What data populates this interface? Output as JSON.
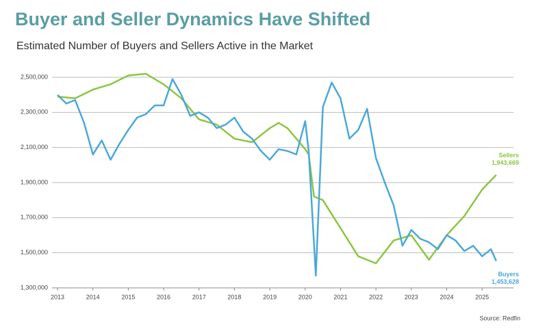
{
  "chart_data": {
    "type": "line",
    "title": "Buyer and Seller Dynamics Have Shifted",
    "subtitle": "Estimated Number of Buyers and Sellers Active in the Market",
    "source": "Source: Redfin",
    "xlim": [
      2013,
      2025.5
    ],
    "xticks": [
      2013,
      2014,
      2015,
      2016,
      2017,
      2018,
      2019,
      2020,
      2021,
      2022,
      2023,
      2024,
      2025
    ],
    "ylim": [
      1300000,
      2500000
    ],
    "yticks": [
      {
        "value": 1300000,
        "label": "1,300,000"
      },
      {
        "value": 1500000,
        "label": "1,500,000"
      },
      {
        "value": 1700000,
        "label": "1,700,000"
      },
      {
        "value": 1900000,
        "label": "1,900,000"
      },
      {
        "value": 2100000,
        "label": "2,100,000"
      },
      {
        "value": 2300000,
        "label": "2,300,000"
      },
      {
        "value": 2500000,
        "label": "2,500,000"
      }
    ],
    "grid": true,
    "series": [
      {
        "name": "Sellers",
        "color": "#8cc63f",
        "x": [
          2013,
          2013.5,
          2014,
          2014.5,
          2015,
          2015.5,
          2016,
          2016.5,
          2017,
          2017.5,
          2018,
          2018.5,
          2019,
          2019.25,
          2019.5,
          2020,
          2020.1,
          2020.25,
          2020.5,
          2021,
          2021.5,
          2022,
          2022.5,
          2023,
          2023.5,
          2024,
          2024.5,
          2025,
          2025.4
        ],
        "values": [
          2390000,
          2380000,
          2430000,
          2460000,
          2510000,
          2520000,
          2460000,
          2380000,
          2260000,
          2230000,
          2150000,
          2130000,
          2210000,
          2240000,
          2210000,
          2090000,
          2060000,
          1820000,
          1800000,
          1640000,
          1480000,
          1440000,
          1570000,
          1600000,
          1460000,
          1600000,
          1710000,
          1860000,
          1943669
        ],
        "value_labels": [
          null,
          null,
          null,
          null,
          null,
          null,
          null,
          null,
          null,
          null,
          null,
          null,
          null,
          null,
          null,
          null,
          null,
          null,
          null,
          null,
          null,
          null,
          null,
          null,
          null,
          null,
          null,
          null,
          "1,943,669"
        ]
      },
      {
        "name": "Buyers",
        "color": "#4aa8d8",
        "x": [
          2013,
          2013.25,
          2013.5,
          2013.75,
          2014,
          2014.25,
          2014.5,
          2014.75,
          2015,
          2015.25,
          2015.5,
          2015.75,
          2016,
          2016.25,
          2016.5,
          2016.75,
          2017,
          2017.25,
          2017.5,
          2017.75,
          2018,
          2018.25,
          2018.5,
          2018.75,
          2019,
          2019.25,
          2019.5,
          2019.75,
          2020,
          2020.1,
          2020.3,
          2020.5,
          2020.75,
          2021,
          2021.25,
          2021.5,
          2021.75,
          2022,
          2022.25,
          2022.5,
          2022.75,
          2023,
          2023.25,
          2023.5,
          2023.75,
          2024,
          2024.25,
          2024.5,
          2024.75,
          2025,
          2025.25,
          2025.4
        ],
        "values": [
          2400000,
          2350000,
          2370000,
          2240000,
          2060000,
          2140000,
          2030000,
          2120000,
          2200000,
          2270000,
          2290000,
          2340000,
          2340000,
          2490000,
          2400000,
          2280000,
          2300000,
          2270000,
          2210000,
          2230000,
          2270000,
          2190000,
          2150000,
          2080000,
          2030000,
          2090000,
          2080000,
          2060000,
          2250000,
          2080000,
          1370000,
          2330000,
          2470000,
          2380000,
          2150000,
          2200000,
          2320000,
          2040000,
          1900000,
          1770000,
          1540000,
          1630000,
          1580000,
          1560000,
          1520000,
          1600000,
          1570000,
          1510000,
          1540000,
          1480000,
          1520000,
          1453628
        ],
        "value_labels": [
          null,
          null,
          null,
          null,
          null,
          null,
          null,
          null,
          null,
          null,
          null,
          null,
          null,
          null,
          null,
          null,
          null,
          null,
          null,
          null,
          null,
          null,
          null,
          null,
          null,
          null,
          null,
          null,
          null,
          null,
          null,
          null,
          null,
          null,
          null,
          null,
          null,
          null,
          null,
          null,
          null,
          null,
          null,
          null,
          null,
          null,
          null,
          null,
          null,
          null,
          null,
          "1,453,628"
        ]
      }
    ]
  }
}
